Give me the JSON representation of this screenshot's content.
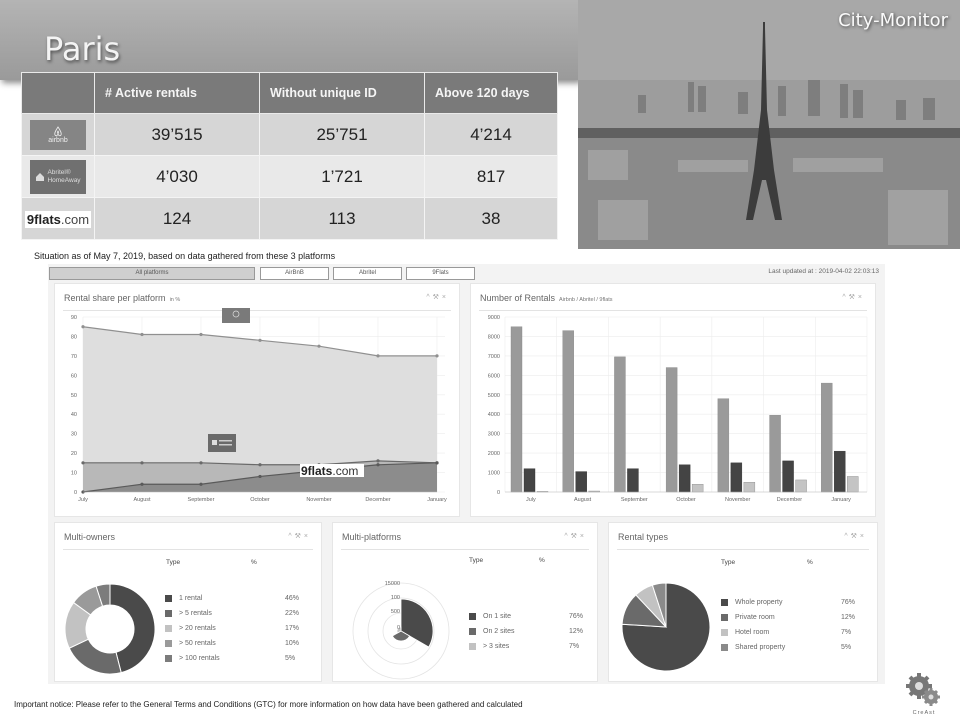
{
  "header": {
    "city": "Paris",
    "brand": "City-Monitor"
  },
  "summary": {
    "columns": [
      "",
      "# Active rentals",
      "Without unique ID",
      "Above 120  days"
    ],
    "rows": [
      {
        "platform": "airbnb",
        "logo_text": "airbnb",
        "active": "39’515",
        "no_id": "25’751",
        "above120": "4’214"
      },
      {
        "platform": "abritel",
        "logo_text_1": "Abritel®",
        "logo_text_2": "HomeAway",
        "active": "4’030",
        "no_id": "1’721",
        "above120": "817"
      },
      {
        "platform": "9flats",
        "logo_text_main": "9flats",
        "logo_text_com": ".com",
        "active": "124",
        "no_id": "113",
        "above120": "38"
      }
    ]
  },
  "situation_note": "Situation as of May 7, 2019, based on data gathered from these 3 platforms",
  "dashboard": {
    "tabs": [
      {
        "label": "All platforms",
        "active": true
      },
      {
        "label": "AirBnB",
        "active": false
      },
      {
        "label": "Abritel",
        "active": false
      },
      {
        "label": "9Flats",
        "active": false
      }
    ],
    "last_updated": "Last updated at : 2019-04-02 22:03:13",
    "panel_controls": {
      "collapse": "^",
      "settings": "⚒",
      "close": "×"
    },
    "rental_share": {
      "title": "Rental share per platform",
      "subtitle": "in %",
      "overlay_9flats": "9flats",
      "overlay_9flats_com": ".com"
    },
    "num_rentals": {
      "title": "Number of Rentals",
      "subtitle": "Airbnb / Abritel / 9flats"
    },
    "multi_owners": {
      "title": "Multi-owners",
      "col_type": "Type",
      "col_pct": "%",
      "items": [
        {
          "label": "1 rental",
          "pct": "46%",
          "color": "#4a4a4a"
        },
        {
          "label": "> 5 rentals",
          "pct": "22%",
          "color": "#6a6a6a"
        },
        {
          "label": "> 20 rentals",
          "pct": "17%",
          "color": "#c2c2c2"
        },
        {
          "label": "> 50 rentals",
          "pct": "10%",
          "color": "#9a9a9a"
        },
        {
          "label": "> 100 rentals",
          "pct": "5%",
          "color": "#7c7c7c"
        }
      ]
    },
    "multi_platforms": {
      "title": "Multi-platforms",
      "col_type": "Type",
      "col_pct": "%",
      "radial_ticks": [
        "15000",
        "100",
        "500",
        "0"
      ],
      "items": [
        {
          "label": "On 1 site",
          "pct": "76%",
          "color": "#4a4a4a"
        },
        {
          "label": "On 2 sites",
          "pct": "12%",
          "color": "#6a6a6a"
        },
        {
          "label": "> 3 sites",
          "pct": "7%",
          "color": "#c2c2c2"
        }
      ]
    },
    "rental_types": {
      "title": "Rental types",
      "col_type": "Type",
      "col_pct": "%",
      "items": [
        {
          "label": "Whole property",
          "pct": "76%",
          "color": "#4a4a4a"
        },
        {
          "label": "Private room",
          "pct": "12%",
          "color": "#6a6a6a"
        },
        {
          "label": "Hotel room",
          "pct": "7%",
          "color": "#c2c2c2"
        },
        {
          "label": "Shared property",
          "pct": "5%",
          "color": "#8a8a8a"
        }
      ]
    }
  },
  "footer": {
    "notice": "Important notice: Please refer to the General Terms and Conditions (GTC) for more information on how data have been gathered and calculated",
    "logo_text": "CreAst"
  },
  "chart_data": [
    {
      "type": "area",
      "title": "Rental share per platform",
      "subtitle": "in %",
      "categories": [
        "July",
        "August",
        "September",
        "October",
        "November",
        "December",
        "January"
      ],
      "ylim": [
        0,
        90
      ],
      "yticks": [
        0,
        10,
        20,
        30,
        40,
        50,
        60,
        70,
        80,
        90
      ],
      "series": [
        {
          "name": "Airbnb",
          "values": [
            85,
            81,
            81,
            78,
            75,
            70,
            70
          ]
        },
        {
          "name": "Abritel",
          "values": [
            15,
            15,
            15,
            14,
            14,
            16,
            15
          ]
        },
        {
          "name": "9flats",
          "values": [
            0,
            4,
            4,
            8,
            11,
            14,
            15
          ]
        }
      ],
      "grid": true
    },
    {
      "type": "bar",
      "title": "Number of Rentals",
      "subtitle": "Airbnb / Abritel / 9flats",
      "categories": [
        "July",
        "August",
        "September",
        "October",
        "November",
        "December",
        "January"
      ],
      "ylim": [
        0,
        9000
      ],
      "yticks": [
        0,
        1000,
        2000,
        3000,
        4000,
        5000,
        6000,
        7000,
        8000,
        9000
      ],
      "series": [
        {
          "name": "Airbnb",
          "values": [
            8500,
            8300,
            6950,
            6400,
            4800,
            3950,
            5600
          ]
        },
        {
          "name": "Abritel",
          "values": [
            1200,
            1050,
            1200,
            1400,
            1500,
            1600,
            2100
          ]
        },
        {
          "name": "9flats",
          "values": [
            30,
            50,
            0,
            400,
            500,
            620,
            800
          ]
        }
      ],
      "grid": true
    },
    {
      "type": "pie",
      "title": "Multi-owners",
      "variant": "doughnut",
      "labels": [
        "1 rental",
        "> 5 rentals",
        "> 20 rentals",
        "> 50 rentals",
        "> 100 rentals"
      ],
      "values": [
        46,
        22,
        17,
        10,
        5
      ]
    },
    {
      "type": "pie",
      "title": "Multi-platforms",
      "variant": "polar-area",
      "labels": [
        "On 1 site",
        "On 2 sites",
        "> 3 sites"
      ],
      "values": [
        76,
        12,
        7
      ]
    },
    {
      "type": "pie",
      "title": "Rental types",
      "labels": [
        "Whole property",
        "Private room",
        "Hotel room",
        "Shared property"
      ],
      "values": [
        76,
        12,
        7,
        5
      ]
    }
  ]
}
